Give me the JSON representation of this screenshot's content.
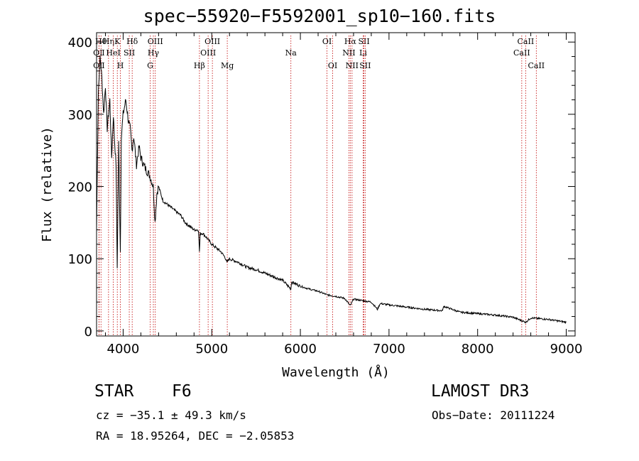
{
  "chart_data": {
    "type": "line",
    "title": "spec−55920−F5592001_sp10−160.fits",
    "xlabel": "Wavelength (Å)",
    "ylabel": "Flux (relative)",
    "xlim": [
      3700,
      9100
    ],
    "ylim": [
      -7,
      413
    ],
    "x_ticks": [
      4000,
      5000,
      6000,
      7000,
      8000,
      9000
    ],
    "y_ticks": [
      0,
      100,
      200,
      300,
      400
    ],
    "grid": false,
    "series": [
      {
        "name": "spectrum",
        "x": [
          3700,
          3720,
          3740,
          3760,
          3780,
          3800,
          3820,
          3850,
          3870,
          3890,
          3900,
          3920,
          3933,
          3950,
          3968,
          3980,
          4000,
          4030,
          4060,
          4080,
          4100,
          4120,
          4150,
          4180,
          4200,
          4250,
          4300,
          4340,
          4360,
          4380,
          4400,
          4450,
          4500,
          4550,
          4600,
          4650,
          4700,
          4750,
          4800,
          4850,
          4861,
          4870,
          4900,
          4950,
          5000,
          5050,
          5100,
          5150,
          5170,
          5200,
          5300,
          5400,
          5500,
          5600,
          5700,
          5800,
          5893,
          5900,
          6000,
          6100,
          6200,
          6300,
          6400,
          6500,
          6563,
          6600,
          6700,
          6800,
          6870,
          6900,
          7000,
          7200,
          7400,
          7600,
          7620,
          7800,
          8000,
          8200,
          8400,
          8542,
          8600,
          8800,
          9000
        ],
        "y": [
          140,
          330,
          380,
          350,
          300,
          340,
          280,
          320,
          240,
          300,
          270,
          230,
          90,
          260,
          110,
          270,
          300,
          320,
          290,
          280,
          250,
          270,
          230,
          255,
          240,
          225,
          215,
          200,
          150,
          190,
          200,
          180,
          175,
          170,
          165,
          160,
          150,
          145,
          140,
          140,
          110,
          135,
          135,
          128,
          120,
          115,
          110,
          102,
          95,
          100,
          95,
          88,
          85,
          80,
          75,
          70,
          58,
          68,
          62,
          58,
          55,
          50,
          48,
          45,
          35,
          44,
          42,
          40,
          30,
          38,
          36,
          33,
          30,
          28,
          34,
          26,
          24,
          22,
          19,
          12,
          18,
          16,
          12
        ]
      }
    ],
    "lines": [
      {
        "label": "OⅡ",
        "wavelength": 3727,
        "row": 3
      },
      {
        "label": "OⅡ",
        "wavelength": 3727,
        "row": 2
      },
      {
        "label": "Hθ",
        "wavelength": 3750,
        "row": 1
      },
      {
        "label": "Hη",
        "wavelength": 3835,
        "row": 1
      },
      {
        "label": "HeІ",
        "wavelength": 3889,
        "row": 2
      },
      {
        "label": "K",
        "wavelength": 3934,
        "row": 1
      },
      {
        "label": "SІІ",
        "wavelength": 4069,
        "row": 2
      },
      {
        "label": "H",
        "wavelength": 3969,
        "row": 3
      },
      {
        "label": "Hδ",
        "wavelength": 4102,
        "row": 1
      },
      {
        "label": "G",
        "wavelength": 4305,
        "row": 3
      },
      {
        "label": "OІІІ",
        "wavelength": 4363,
        "row": 1
      },
      {
        "label": "Hγ",
        "wavelength": 4341,
        "row": 2
      },
      {
        "label": "Hβ",
        "wavelength": 4861,
        "row": 3
      },
      {
        "label": "OІІІ",
        "wavelength": 5007,
        "row": 1
      },
      {
        "label": "OІІІ",
        "wavelength": 4959,
        "row": 2
      },
      {
        "label": "Mg",
        "wavelength": 5175,
        "row": 3
      },
      {
        "label": "Na",
        "wavelength": 5893,
        "row": 2
      },
      {
        "label": "OІ",
        "wavelength": 6300,
        "row": 1
      },
      {
        "label": "OІ",
        "wavelength": 6364,
        "row": 3
      },
      {
        "label": "Hα",
        "wavelength": 6563,
        "row": 1
      },
      {
        "label": "NІІ",
        "wavelength": 6548,
        "row": 2
      },
      {
        "label": "NІІ",
        "wavelength": 6583,
        "row": 3
      },
      {
        "label": "SІІ",
        "wavelength": 6717,
        "row": 1
      },
      {
        "label": "Li",
        "wavelength": 6708,
        "row": 2
      },
      {
        "label": "SІІ",
        "wavelength": 6731,
        "row": 3
      },
      {
        "label": "CaІІ",
        "wavelength": 8542,
        "row": 1
      },
      {
        "label": "CaІІ",
        "wavelength": 8498,
        "row": 2
      },
      {
        "label": "CaІІ",
        "wavelength": 8662,
        "row": 3
      }
    ]
  },
  "info": {
    "object_class": "STAR",
    "subclass": "F6",
    "survey": "LAMOST DR3",
    "cz": "cz = −35.1 ± 49.3 km/s",
    "obs_date": "Obs−Date: 20111224",
    "radec": "RA =  18.95264, DEC =  −2.05853"
  }
}
